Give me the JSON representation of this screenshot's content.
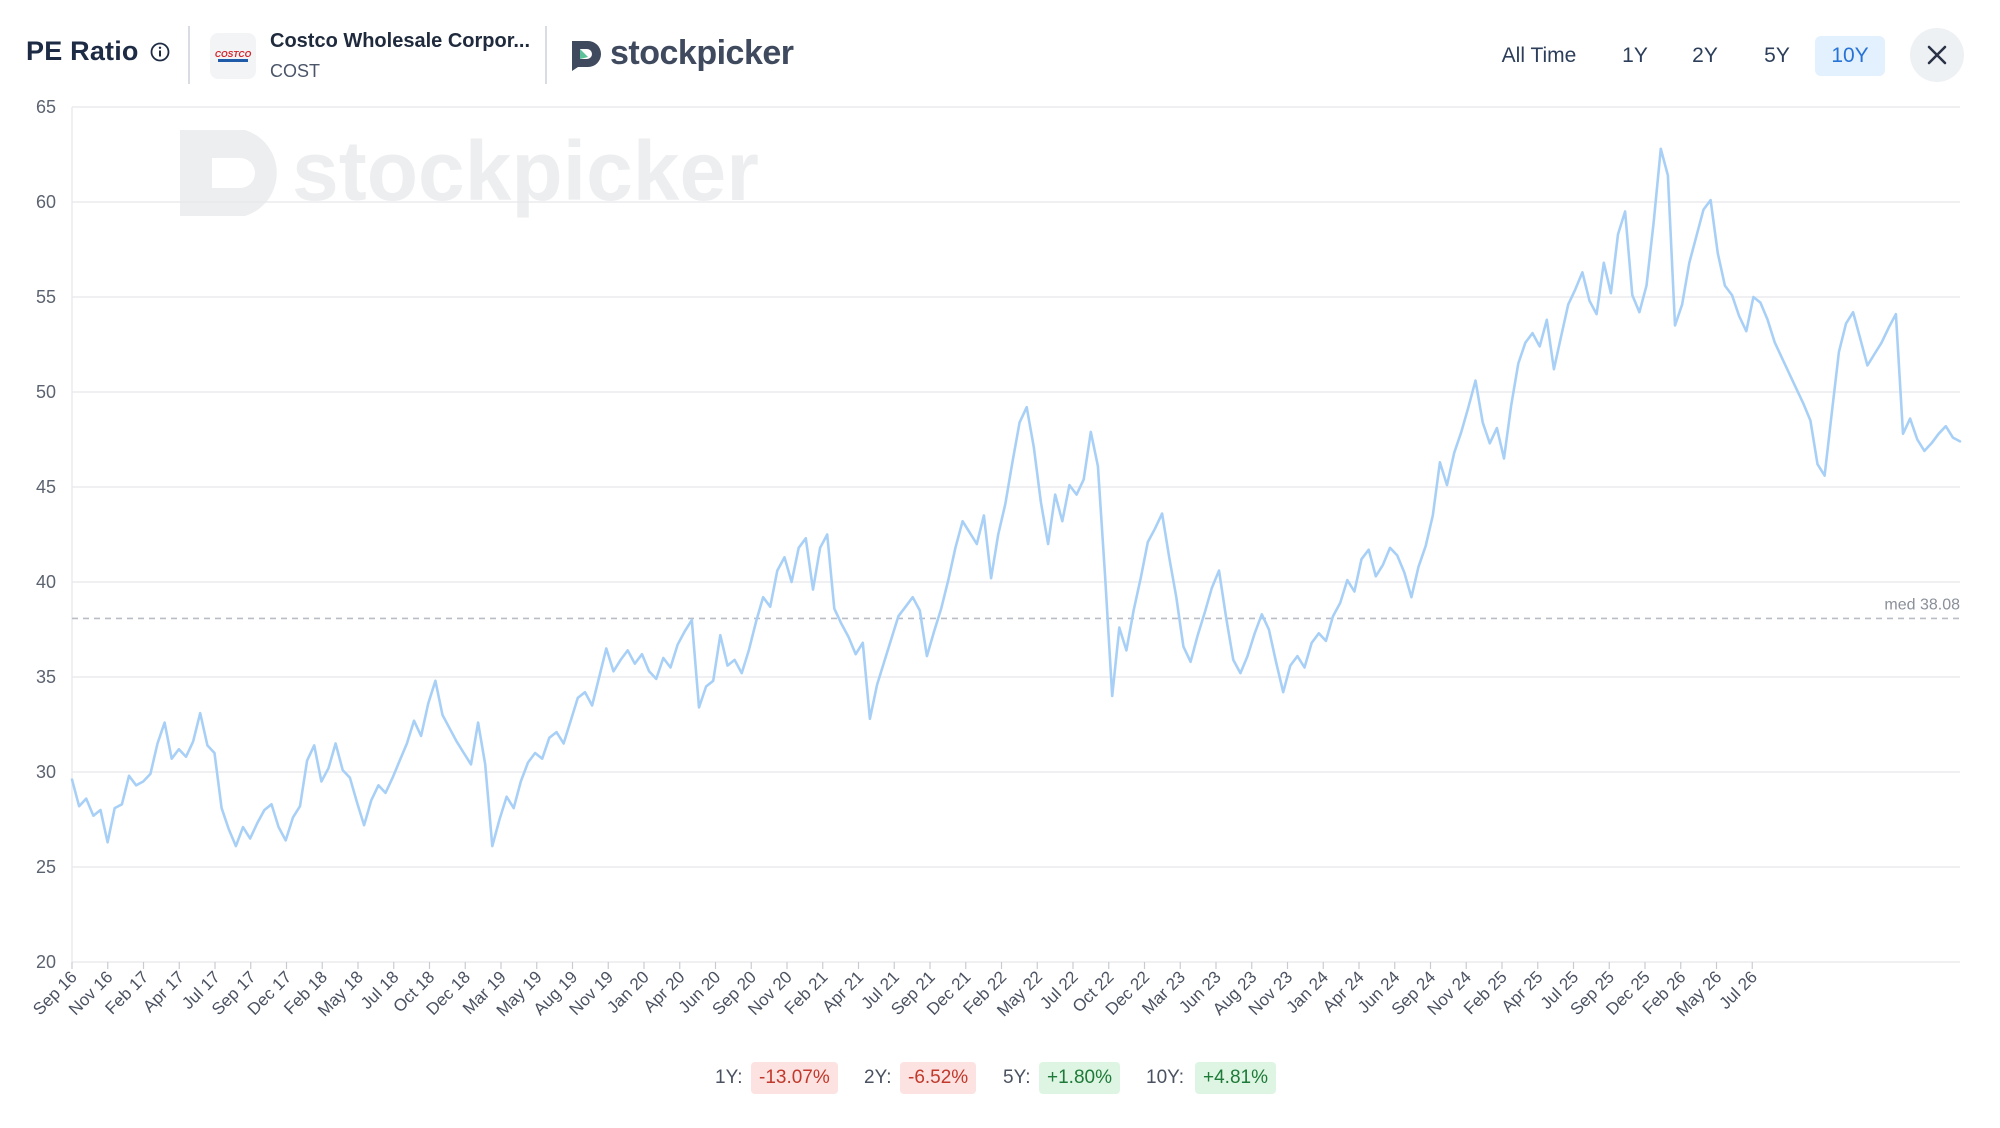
{
  "header": {
    "title": "PE Ratio",
    "company_name": "Costco Wholesale Corpor...",
    "ticker": "COST",
    "logo_text": "COSTCO",
    "brand_name": "stockpicker"
  },
  "range_buttons": [
    {
      "label": "All Time",
      "active": false
    },
    {
      "label": "1Y",
      "active": false
    },
    {
      "label": "2Y",
      "active": false
    },
    {
      "label": "5Y",
      "active": false
    },
    {
      "label": "10Y",
      "active": true
    }
  ],
  "colors": {
    "line": "#a8d0f7",
    "grid": "#e6e8eb",
    "median_line": "#b9bec6",
    "active_button": "#2774d6",
    "logo_red": "#d5242b",
    "logo_blue": "#1f5ba8",
    "brand_mark": "#3f4a5e"
  },
  "chart_data": {
    "type": "line",
    "title": "",
    "xlabel": "",
    "ylabel": "",
    "ylim": [
      20,
      65
    ],
    "yticks": [
      20,
      25,
      30,
      35,
      40,
      45,
      50,
      55,
      60,
      65
    ],
    "grid": true,
    "median_label": "med 38.08",
    "median_value": 38.08,
    "watermark": "stockpicker",
    "x_tick_labels": [
      "Sep 16",
      "Nov 16",
      "Feb 17",
      "Apr 17",
      "Jul 17",
      "Sep 17",
      "Dec 17",
      "Feb 18",
      "May 18",
      "Jul 18",
      "Oct 18",
      "Dec 18",
      "Mar 19",
      "May 19",
      "Aug 19",
      "Nov 19",
      "Jan 20",
      "Apr 20",
      "Jun 20",
      "Sep 20",
      "Nov 20",
      "Feb 21",
      "Apr 21",
      "Jul 21",
      "Sep 21",
      "Dec 21",
      "Feb 22",
      "May 22",
      "Jul 22",
      "Oct 22",
      "Dec 22",
      "Mar 23",
      "Jun 23",
      "Aug 23",
      "Nov 23",
      "Jan 24",
      "Apr 24",
      "Jun 24",
      "Sep 24",
      "Nov 24",
      "Feb 25",
      "Apr 25",
      "Jul 25",
      "Sep 25",
      "Dec 25",
      "Feb 26",
      "May 26",
      "Jul 26"
    ],
    "series": [
      {
        "values": [
          29.6,
          28.2,
          28.6,
          27.7,
          28.0,
          26.3,
          28.1,
          28.3,
          29.8,
          29.3,
          29.5,
          29.9,
          31.5,
          32.6,
          30.7,
          31.2,
          30.8,
          31.6,
          33.1,
          31.4,
          31.0,
          28.1,
          27.0,
          26.1,
          27.1,
          26.5,
          27.3,
          28.0,
          28.3,
          27.1,
          26.4,
          27.6,
          28.2,
          30.6,
          31.4,
          29.5,
          30.2,
          31.5,
          30.1,
          29.7,
          28.4,
          27.2,
          28.5,
          29.3,
          28.9,
          29.7,
          30.6,
          31.5,
          32.7,
          31.9,
          33.6,
          34.8,
          33.0,
          32.3,
          31.6,
          31.0,
          30.4,
          32.6,
          30.4,
          26.1,
          27.5,
          28.7,
          28.1,
          29.5,
          30.5,
          31.0,
          30.7,
          31.8,
          32.1,
          31.5,
          32.7,
          33.9,
          34.2,
          33.5,
          35.0,
          36.5,
          35.3,
          35.9,
          36.4,
          35.7,
          36.2,
          35.3,
          34.9,
          36.0,
          35.5,
          36.7,
          37.4,
          38.0,
          33.4,
          34.5,
          34.8,
          37.2,
          35.6,
          35.9,
          35.2,
          36.4,
          37.9,
          39.2,
          38.7,
          40.6,
          41.3,
          40.0,
          41.8,
          42.3,
          39.6,
          41.8,
          42.5,
          38.6,
          37.8,
          37.1,
          36.2,
          36.8,
          32.8,
          34.6,
          35.8,
          37.0,
          38.2,
          38.7,
          39.2,
          38.5,
          36.1,
          37.4,
          38.6,
          40.1,
          41.8,
          43.2,
          42.6,
          42.0,
          43.5,
          40.2,
          42.5,
          44.1,
          46.3,
          48.4,
          49.2,
          47.1,
          44.2,
          42.0,
          44.6,
          43.2,
          45.1,
          44.6,
          45.4,
          47.9,
          46.1,
          40.3,
          34.0,
          37.6,
          36.4,
          38.5,
          40.2,
          42.1,
          42.8,
          43.6,
          41.3,
          39.2,
          36.6,
          35.8,
          37.2,
          38.4,
          39.7,
          40.6,
          38.1,
          35.9,
          35.2,
          36.1,
          37.3,
          38.3,
          37.5,
          35.8,
          34.2,
          35.6,
          36.1,
          35.5,
          36.8,
          37.3,
          36.9,
          38.2,
          38.9,
          40.1,
          39.5,
          41.2,
          41.7,
          40.3,
          40.9,
          41.8,
          41.4,
          40.5,
          39.2,
          40.8,
          41.9,
          43.5,
          46.3,
          45.1,
          46.8,
          47.9,
          49.2,
          50.6,
          48.4,
          47.3,
          48.1,
          46.5,
          49.3,
          51.5,
          52.6,
          53.1,
          52.4,
          53.8,
          51.2,
          52.9,
          54.6,
          55.4,
          56.3,
          54.8,
          54.1,
          56.8,
          55.2,
          58.3,
          59.5,
          55.1,
          54.2,
          55.6,
          58.9,
          62.8,
          61.4,
          53.5,
          54.6,
          56.8,
          58.2,
          59.6,
          60.1,
          57.3,
          55.6,
          55.1,
          54.0,
          53.2,
          55.0,
          54.7,
          53.8,
          52.6,
          51.8,
          51.0,
          50.2,
          49.4,
          48.5,
          46.2,
          45.6,
          48.9,
          52.1,
          53.6,
          54.2,
          52.8,
          51.4,
          52.0,
          52.6,
          53.4,
          54.1,
          47.8,
          48.6,
          47.5,
          46.9,
          47.3,
          47.8,
          48.2,
          47.6,
          47.4
        ]
      }
    ]
  },
  "footer": {
    "changes": [
      {
        "label": "1Y:",
        "value": "-13.07%",
        "direction": "neg"
      },
      {
        "label": "2Y:",
        "value": "-6.52%",
        "direction": "neg"
      },
      {
        "label": "5Y:",
        "value": "+1.80%",
        "direction": "pos"
      },
      {
        "label": "10Y:",
        "value": "+4.81%",
        "direction": "pos"
      }
    ]
  }
}
